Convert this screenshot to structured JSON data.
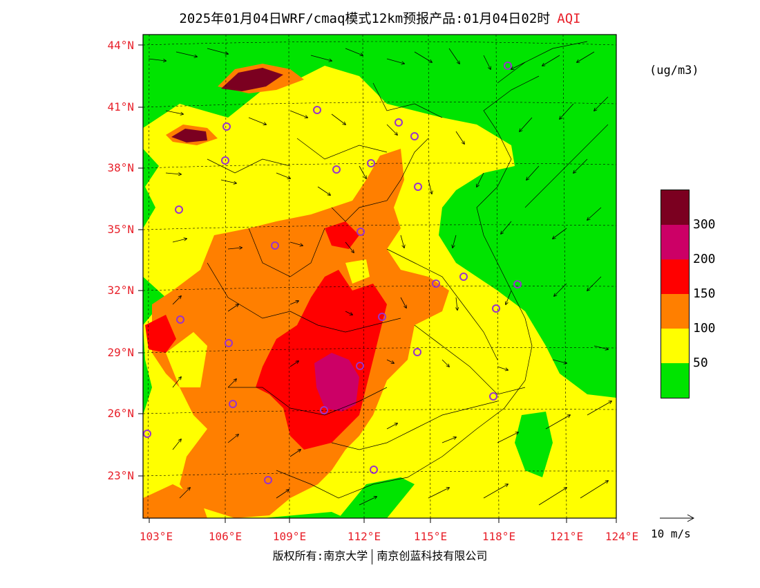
{
  "header": {
    "title": "2025年01月04日WRF/cmaq模式12km预报产品:01月04日02时",
    "product": "AQI"
  },
  "units": "(ug/m3)",
  "axes": {
    "latitude_labels": [
      "44°N",
      "41°N",
      "38°N",
      "35°N",
      "32°N",
      "29°N",
      "26°N",
      "23°N"
    ],
    "longitude_labels": [
      "103°E",
      "106°E",
      "109°E",
      "112°E",
      "115°E",
      "118°E",
      "121°E",
      "124°E"
    ]
  },
  "legend": {
    "levels": [
      {
        "label": "",
        "color": "#7b0020"
      },
      {
        "label": "300",
        "color": "#cc0066"
      },
      {
        "label": "200",
        "color": "#ff0000"
      },
      {
        "label": "150",
        "color": "#ff7f00"
      },
      {
        "label": "100",
        "color": "#ffff00"
      },
      {
        "label": "50",
        "color": "#00e400"
      }
    ]
  },
  "reference_vector": {
    "label": "10 m/s"
  },
  "footer": {
    "left": "版权所有:南京大学",
    "right": "南京创蓝科技有限公司"
  },
  "colors": {
    "accent_red": "#e8202a",
    "good": "#00e400",
    "moderate": "#ffff00",
    "usg": "#ff7f00",
    "unhealthy": "#ff0000",
    "very_unhealthy": "#cc0066",
    "hazardous": "#7b0020",
    "station_marker": "#9933cc"
  },
  "stations_count_note": null
}
